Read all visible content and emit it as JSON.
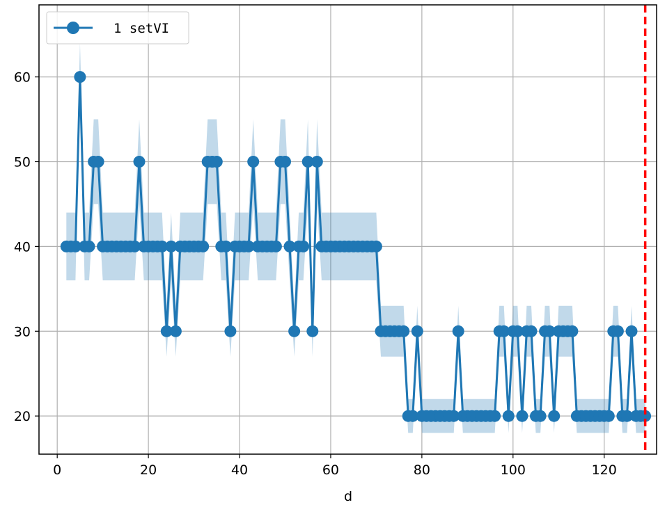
{
  "chart_data": {
    "type": "line",
    "xlabel": "d",
    "ylabel": "",
    "title": "",
    "xlim": [
      -4,
      131.5
    ],
    "ylim": [
      15.5,
      68.5
    ],
    "xticks": [
      0,
      20,
      40,
      60,
      80,
      100,
      120
    ],
    "yticks": [
      20,
      30,
      40,
      50,
      60
    ],
    "grid": true,
    "legend_position": "top-left",
    "band_color": "#1f77b4",
    "band_opacity": 0.28,
    "reference_line": {
      "x": 129,
      "color": "#ff0000",
      "style": "dashed"
    },
    "series": [
      {
        "name": "1 setVI",
        "color": "#1f77b4",
        "marker": "circle",
        "x": [
          2,
          3,
          4,
          5,
          6,
          7,
          8,
          9,
          10,
          11,
          12,
          13,
          14,
          15,
          16,
          17,
          18,
          19,
          20,
          21,
          22,
          23,
          24,
          25,
          26,
          27,
          28,
          29,
          30,
          31,
          32,
          33,
          34,
          35,
          36,
          37,
          38,
          39,
          40,
          41,
          42,
          43,
          44,
          45,
          46,
          47,
          48,
          49,
          50,
          51,
          52,
          53,
          54,
          55,
          56,
          57,
          58,
          59,
          60,
          61,
          62,
          63,
          64,
          65,
          66,
          67,
          68,
          69,
          70,
          71,
          72,
          73,
          74,
          75,
          76,
          77,
          78,
          79,
          80,
          81,
          82,
          83,
          84,
          85,
          86,
          87,
          88,
          89,
          90,
          91,
          92,
          93,
          94,
          95,
          96,
          97,
          98,
          99,
          100,
          101,
          102,
          103,
          104,
          105,
          106,
          107,
          108,
          109,
          110,
          111,
          112,
          113,
          114,
          115,
          116,
          117,
          118,
          119,
          120,
          121,
          122,
          123,
          124,
          125,
          126,
          127,
          128,
          129
        ],
        "y": [
          40,
          40,
          40,
          60,
          40,
          40,
          50,
          50,
          40,
          40,
          40,
          40,
          40,
          40,
          40,
          40,
          50,
          40,
          40,
          40,
          40,
          40,
          30,
          40,
          30,
          40,
          40,
          40,
          40,
          40,
          40,
          50,
          50,
          50,
          40,
          40,
          30,
          40,
          40,
          40,
          40,
          50,
          40,
          40,
          40,
          40,
          40,
          50,
          50,
          40,
          30,
          40,
          40,
          50,
          30,
          50,
          40,
          40,
          40,
          40,
          40,
          40,
          40,
          40,
          40,
          40,
          40,
          40,
          40,
          30,
          30,
          30,
          30,
          30,
          30,
          20,
          20,
          30,
          20,
          20,
          20,
          20,
          20,
          20,
          20,
          20,
          30,
          20,
          20,
          20,
          20,
          20,
          20,
          20,
          20,
          30,
          30,
          20,
          30,
          30,
          20,
          30,
          30,
          20,
          20,
          30,
          30,
          20,
          30,
          30,
          30,
          30,
          20,
          20,
          20,
          20,
          20,
          20,
          20,
          20,
          30,
          30,
          20,
          20,
          30,
          20,
          20,
          20
        ],
        "band_lower": [
          36,
          36,
          36,
          60,
          36,
          36,
          45,
          45,
          36,
          36,
          36,
          36,
          36,
          36,
          36,
          36,
          45,
          36,
          36,
          36,
          36,
          36,
          27,
          36,
          27,
          36,
          36,
          36,
          36,
          36,
          36,
          45,
          45,
          45,
          36,
          36,
          27,
          36,
          36,
          36,
          36,
          45,
          36,
          36,
          36,
          36,
          36,
          45,
          45,
          36,
          27,
          36,
          36,
          45,
          27,
          45,
          36,
          36,
          36,
          36,
          36,
          36,
          36,
          36,
          36,
          36,
          36,
          36,
          36,
          27,
          27,
          27,
          27,
          27,
          27,
          18,
          18,
          27,
          18,
          18,
          18,
          18,
          18,
          18,
          18,
          18,
          27,
          18,
          18,
          18,
          18,
          18,
          18,
          18,
          18,
          27,
          27,
          18,
          27,
          27,
          18,
          27,
          27,
          18,
          18,
          27,
          27,
          18,
          27,
          27,
          27,
          27,
          18,
          18,
          18,
          18,
          18,
          18,
          18,
          18,
          27,
          27,
          18,
          18,
          27,
          18,
          18,
          18
        ],
        "band_upper": [
          44,
          44,
          44,
          64,
          44,
          44,
          55,
          55,
          44,
          44,
          44,
          44,
          44,
          44,
          44,
          44,
          55,
          44,
          44,
          44,
          44,
          44,
          33,
          44,
          33,
          44,
          44,
          44,
          44,
          44,
          44,
          55,
          55,
          55,
          44,
          44,
          33,
          44,
          44,
          44,
          44,
          55,
          44,
          44,
          44,
          44,
          44,
          55,
          55,
          44,
          33,
          44,
          44,
          55,
          33,
          55,
          44,
          44,
          44,
          44,
          44,
          44,
          44,
          44,
          44,
          44,
          44,
          44,
          44,
          33,
          33,
          33,
          33,
          33,
          33,
          22,
          22,
          33,
          22,
          22,
          22,
          22,
          22,
          22,
          22,
          22,
          33,
          22,
          22,
          22,
          22,
          22,
          22,
          22,
          22,
          33,
          33,
          22,
          33,
          33,
          22,
          33,
          33,
          22,
          22,
          33,
          33,
          22,
          33,
          33,
          33,
          33,
          22,
          22,
          22,
          22,
          22,
          22,
          22,
          22,
          33,
          33,
          22,
          22,
          33,
          22,
          22,
          22
        ]
      }
    ]
  }
}
